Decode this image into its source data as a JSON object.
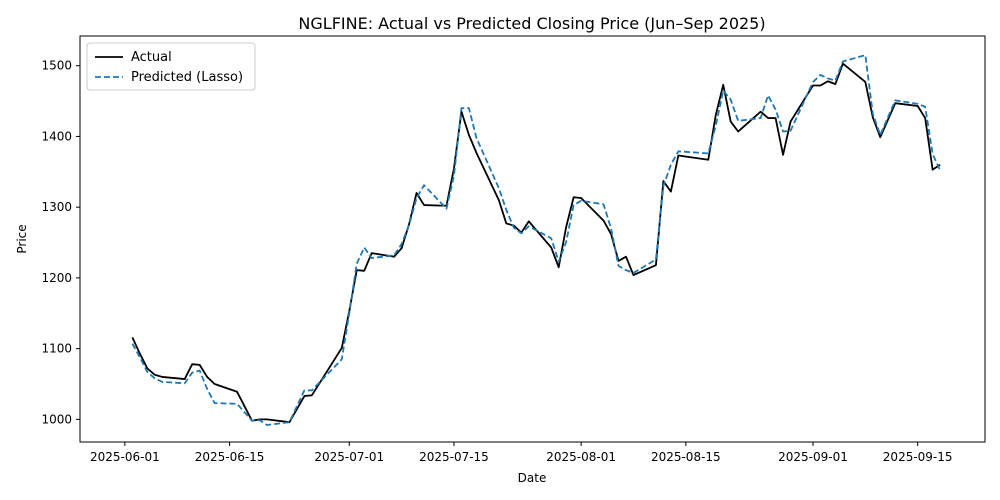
{
  "chart_data": {
    "type": "line",
    "title": "NGLFINE: Actual vs Predicted Closing Price (Jun–Sep 2025)",
    "xlabel": "Date",
    "ylabel": "Price",
    "xlim": [
      "2025-05-26",
      "2025-09-24"
    ],
    "ylim": [
      968,
      1542
    ],
    "x_ticks": [
      "2025-06-01",
      "2025-06-15",
      "2025-07-01",
      "2025-07-15",
      "2025-08-01",
      "2025-08-15",
      "2025-09-01",
      "2025-09-15"
    ],
    "y_ticks": [
      1000,
      1100,
      1200,
      1300,
      1400,
      1500
    ],
    "grid": false,
    "legend_position": "top-left",
    "series": [
      {
        "name": "Actual",
        "color": "#000000",
        "style": "solid",
        "points": [
          [
            "2025-06-02",
            1116
          ],
          [
            "2025-06-03",
            1093
          ],
          [
            "2025-06-04",
            1072
          ],
          [
            "2025-06-05",
            1063
          ],
          [
            "2025-06-06",
            1060
          ],
          [
            "2025-06-09",
            1057
          ],
          [
            "2025-06-10",
            1078
          ],
          [
            "2025-06-11",
            1077
          ],
          [
            "2025-06-12",
            1060
          ],
          [
            "2025-06-13",
            1050
          ],
          [
            "2025-06-16",
            1039
          ],
          [
            "2025-06-18",
            998
          ],
          [
            "2025-06-19",
            1000
          ],
          [
            "2025-06-20",
            1000
          ],
          [
            "2025-06-23",
            996
          ],
          [
            "2025-06-25",
            1033
          ],
          [
            "2025-06-26",
            1034
          ],
          [
            "2025-06-30",
            1101
          ],
          [
            "2025-07-01",
            1153
          ],
          [
            "2025-07-02",
            1211
          ],
          [
            "2025-07-03",
            1210
          ],
          [
            "2025-07-04",
            1235
          ],
          [
            "2025-07-07",
            1230
          ],
          [
            "2025-07-08",
            1242
          ],
          [
            "2025-07-09",
            1276
          ],
          [
            "2025-07-10",
            1320
          ],
          [
            "2025-07-11",
            1303
          ],
          [
            "2025-07-14",
            1302
          ],
          [
            "2025-07-15",
            1355
          ],
          [
            "2025-07-16",
            1435
          ],
          [
            "2025-07-17",
            1402
          ],
          [
            "2025-07-18",
            1377
          ],
          [
            "2025-07-21",
            1310
          ],
          [
            "2025-07-22",
            1277
          ],
          [
            "2025-07-23",
            1274
          ],
          [
            "2025-07-24",
            1264
          ],
          [
            "2025-07-25",
            1280
          ],
          [
            "2025-07-28",
            1243
          ],
          [
            "2025-07-29",
            1215
          ],
          [
            "2025-07-30",
            1272
          ],
          [
            "2025-07-31",
            1314
          ],
          [
            "2025-08-01",
            1313
          ],
          [
            "2025-08-04",
            1281
          ],
          [
            "2025-08-05",
            1262
          ],
          [
            "2025-08-06",
            1224
          ],
          [
            "2025-08-07",
            1230
          ],
          [
            "2025-08-08",
            1204
          ],
          [
            "2025-08-11",
            1218
          ],
          [
            "2025-08-12",
            1337
          ],
          [
            "2025-08-13",
            1322
          ],
          [
            "2025-08-14",
            1373
          ],
          [
            "2025-08-18",
            1367
          ],
          [
            "2025-08-19",
            1430
          ],
          [
            "2025-08-20",
            1473
          ],
          [
            "2025-08-21",
            1421
          ],
          [
            "2025-08-22",
            1407
          ],
          [
            "2025-08-25",
            1435
          ],
          [
            "2025-08-26",
            1426
          ],
          [
            "2025-08-27",
            1426
          ],
          [
            "2025-08-28",
            1374
          ],
          [
            "2025-08-29",
            1421
          ],
          [
            "2025-09-01",
            1472
          ],
          [
            "2025-09-02",
            1472
          ],
          [
            "2025-09-03",
            1478
          ],
          [
            "2025-09-04",
            1474
          ],
          [
            "2025-09-05",
            1503
          ],
          [
            "2025-09-08",
            1477
          ],
          [
            "2025-09-09",
            1427
          ],
          [
            "2025-09-10",
            1399
          ],
          [
            "2025-09-12",
            1447
          ],
          [
            "2025-09-15",
            1443
          ],
          [
            "2025-09-16",
            1426
          ],
          [
            "2025-09-17",
            1353
          ],
          [
            "2025-09-18",
            1360
          ]
        ]
      },
      {
        "name": "Predicted (Lasso)",
        "color": "#1f77b4",
        "style": "dashed",
        "points": [
          [
            "2025-06-02",
            1107
          ],
          [
            "2025-06-03",
            1088
          ],
          [
            "2025-06-04",
            1067
          ],
          [
            "2025-06-05",
            1058
          ],
          [
            "2025-06-06",
            1053
          ],
          [
            "2025-06-09",
            1051
          ],
          [
            "2025-06-10",
            1066
          ],
          [
            "2025-06-11",
            1069
          ],
          [
            "2025-06-12",
            1043
          ],
          [
            "2025-06-13",
            1023
          ],
          [
            "2025-06-16",
            1022
          ],
          [
            "2025-06-18",
            998
          ],
          [
            "2025-06-19",
            999
          ],
          [
            "2025-06-20",
            992
          ],
          [
            "2025-06-23",
            996
          ],
          [
            "2025-06-25",
            1041
          ],
          [
            "2025-06-26",
            1041
          ],
          [
            "2025-06-30",
            1085
          ],
          [
            "2025-07-01",
            1150
          ],
          [
            "2025-07-02",
            1220
          ],
          [
            "2025-07-03",
            1243
          ],
          [
            "2025-07-04",
            1228
          ],
          [
            "2025-07-07",
            1232
          ],
          [
            "2025-07-08",
            1248
          ],
          [
            "2025-07-09",
            1275
          ],
          [
            "2025-07-10",
            1313
          ],
          [
            "2025-07-11",
            1331
          ],
          [
            "2025-07-14",
            1298
          ],
          [
            "2025-07-15",
            1345
          ],
          [
            "2025-07-16",
            1440
          ],
          [
            "2025-07-17",
            1440
          ],
          [
            "2025-07-18",
            1398
          ],
          [
            "2025-07-21",
            1327
          ],
          [
            "2025-07-22",
            1296
          ],
          [
            "2025-07-23",
            1271
          ],
          [
            "2025-07-24",
            1263
          ],
          [
            "2025-07-25",
            1273
          ],
          [
            "2025-07-28",
            1256
          ],
          [
            "2025-07-29",
            1223
          ],
          [
            "2025-07-30",
            1251
          ],
          [
            "2025-07-31",
            1303
          ],
          [
            "2025-08-01",
            1309
          ],
          [
            "2025-08-04",
            1304
          ],
          [
            "2025-08-05",
            1270
          ],
          [
            "2025-08-06",
            1217
          ],
          [
            "2025-08-07",
            1211
          ],
          [
            "2025-08-08",
            1207
          ],
          [
            "2025-08-11",
            1226
          ],
          [
            "2025-08-12",
            1330
          ],
          [
            "2025-08-13",
            1360
          ],
          [
            "2025-08-14",
            1379
          ],
          [
            "2025-08-18",
            1376
          ],
          [
            "2025-08-19",
            1415
          ],
          [
            "2025-08-20",
            1465
          ],
          [
            "2025-08-21",
            1452
          ],
          [
            "2025-08-22",
            1422
          ],
          [
            "2025-08-25",
            1426
          ],
          [
            "2025-08-26",
            1458
          ],
          [
            "2025-08-27",
            1438
          ],
          [
            "2025-08-28",
            1407
          ],
          [
            "2025-08-29",
            1408
          ],
          [
            "2025-09-01",
            1477
          ],
          [
            "2025-09-02",
            1487
          ],
          [
            "2025-09-03",
            1482
          ],
          [
            "2025-09-04",
            1479
          ],
          [
            "2025-09-05",
            1506
          ],
          [
            "2025-09-08",
            1515
          ],
          [
            "2025-09-09",
            1432
          ],
          [
            "2025-09-10",
            1402
          ],
          [
            "2025-09-12",
            1451
          ],
          [
            "2025-09-15",
            1446
          ],
          [
            "2025-09-16",
            1442
          ],
          [
            "2025-09-17",
            1375
          ],
          [
            "2025-09-18",
            1352
          ]
        ]
      }
    ]
  }
}
